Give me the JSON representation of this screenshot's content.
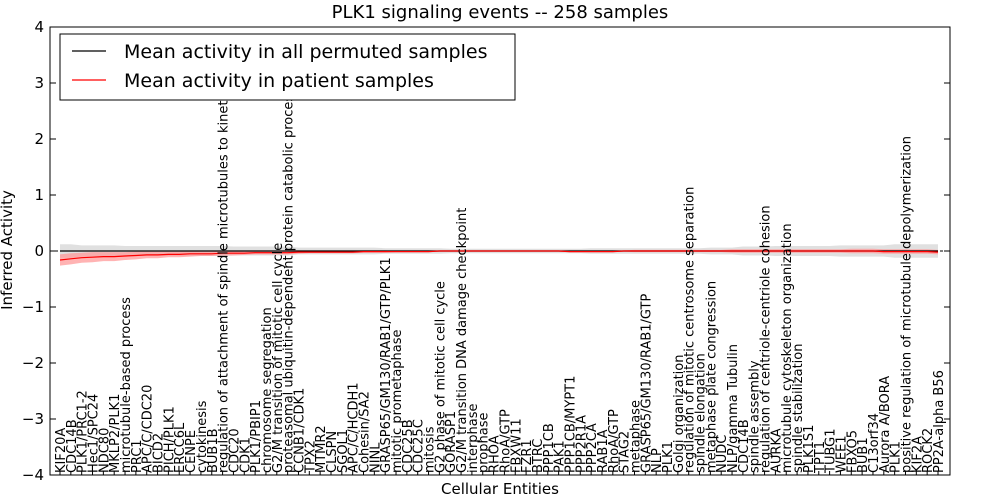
{
  "chart_data": {
    "type": "line",
    "title": "PLK1 signaling events -- 258 samples",
    "xlabel": "Cellular Entities",
    "ylabel": "Inferred Activity",
    "ylim": [
      -4,
      4
    ],
    "yticks": [
      -4,
      -3,
      -2,
      -1,
      0,
      1,
      2,
      3,
      4
    ],
    "grid": false,
    "legend_position": "top-left",
    "colors": {
      "permuted": "#000000",
      "patient": "#ff0000",
      "patient_band": "#ff9999",
      "permuted_band": "#cccccc"
    },
    "categories": [
      "KIF20A",
      "CDC14B",
      "PLK1/PRC1-2",
      "Hec1/SPC24",
      "NDC80",
      "MKLP2/PLK1",
      "microtubule-based process",
      "PRC1",
      "APC/C/CDC20",
      "BICD2",
      "PICH/PLK1",
      "ERCC6L",
      "CENPE",
      "cytokinesis",
      "BUB1B",
      "regulation of attachment of spindle microtubules to kinetochore",
      "CDC20",
      "CDK1",
      "PLK1/PBIP1",
      "chromosome segregation",
      "G2/M transition of mitotic cell cycle",
      "proteasomal ubiquitin-dependent protein catabolic process",
      "CCNB1/CDK1",
      "TPX2",
      "MTMR2",
      "CLSPN",
      "SGOL1",
      "APC/C/HCDH1",
      "Cohesin/SA2",
      "NINL",
      "GRASP65/GM130/RAB1/GTP/PLK1",
      "mitotic prometaphase",
      "CDC25B",
      "CDC25C",
      "mitosis",
      "G2 phase of mitotic cell cycle",
      "GORASP1",
      "G2/M transition DNA damage checkpoint",
      "interphase",
      "prophase",
      "RHOA",
      "RhoA/GTP",
      "FBXW11",
      "FZR1",
      "BTRC",
      "PPP1CB",
      "PAK1",
      "PPP1CB/MYPT1",
      "PPP2R1A",
      "PPP2CA",
      "RAB1A",
      "RhoA/GTP",
      "STAG2",
      "metaphase",
      "GRASP65/GM130/RAB1/GTP",
      "NLP",
      "PLK1",
      "Golgi organization",
      "regulation of mitotic centrosome separation",
      "spindle elongation",
      "metaphase plate congression",
      "NUDC",
      "NLP/gamma Tubulin",
      "CDC14B",
      "spindle assembly",
      "regulation of centriole-centriole cohesion",
      "AURKA",
      "microtubule cytoskeleton organization",
      "spindle stabilization",
      "PLK1S1",
      "TPT1",
      "TUBG1",
      "WEE1",
      "FBXO5",
      "BUB1",
      "C13orf34",
      "Aurora A/BORA",
      "PLK1",
      "positive regulation of microtubule depolymerization",
      "KIF2A",
      "ROCK2",
      "PP2A-alpha B56"
    ],
    "series": [
      {
        "name": "Mean activity in all permuted samples",
        "values": [
          0.0,
          0.0,
          0.0,
          0.0,
          0.0,
          0.0,
          0.0,
          0.0,
          0.0,
          0.0,
          0.0,
          0.0,
          0.0,
          0.0,
          0.0,
          0.0,
          0.0,
          0.0,
          0.0,
          0.0,
          0.0,
          0.0,
          0.0,
          0.0,
          0.0,
          0.0,
          0.0,
          0.0,
          0.0,
          0.0,
          0.0,
          0.0,
          0.0,
          0.0,
          0.0,
          0.0,
          0.0,
          0.0,
          0.0,
          0.0,
          0.0,
          0.0,
          0.0,
          0.0,
          0.0,
          0.0,
          0.0,
          0.0,
          0.0,
          0.0,
          0.0,
          0.0,
          0.0,
          0.0,
          0.0,
          0.0,
          0.0,
          0.0,
          0.0,
          0.0,
          0.0,
          0.0,
          0.0,
          0.0,
          0.0,
          0.0,
          0.0,
          0.0,
          0.0,
          0.0,
          0.0,
          0.0,
          0.0,
          0.0,
          0.0,
          0.0,
          0.0,
          0.0,
          0.0,
          0.0,
          0.0,
          0.0
        ],
        "band": [
          0.12,
          0.12,
          0.1,
          0.1,
          0.1,
          0.1,
          0.09,
          0.09,
          0.09,
          0.09,
          0.09,
          0.09,
          0.09,
          0.09,
          0.09,
          0.09,
          0.08,
          0.08,
          0.08,
          0.08,
          0.08,
          0.08,
          0.06,
          0.06,
          0.06,
          0.06,
          0.06,
          0.06,
          0.06,
          0.06,
          0.05,
          0.05,
          0.05,
          0.05,
          0.05,
          0.05,
          0.04,
          0.04,
          0.04,
          0.04,
          0.04,
          0.04,
          0.04,
          0.04,
          0.04,
          0.04,
          0.04,
          0.04,
          0.04,
          0.05,
          0.05,
          0.05,
          0.05,
          0.05,
          0.05,
          0.05,
          0.05,
          0.05,
          0.05,
          0.05,
          0.06,
          0.06,
          0.06,
          0.08,
          0.08,
          0.08,
          0.09,
          0.09,
          0.09,
          0.09,
          0.09,
          0.09,
          0.1,
          0.1,
          0.1,
          0.1,
          0.1,
          0.12,
          0.12,
          0.12,
          0.12,
          0.12
        ]
      },
      {
        "name": "Mean activity in patient samples",
        "values": [
          -0.16,
          -0.14,
          -0.12,
          -0.11,
          -0.1,
          -0.1,
          -0.09,
          -0.08,
          -0.07,
          -0.07,
          -0.06,
          -0.06,
          -0.05,
          -0.05,
          -0.05,
          -0.04,
          -0.04,
          -0.04,
          -0.03,
          -0.03,
          -0.03,
          -0.03,
          -0.02,
          -0.02,
          -0.02,
          -0.02,
          -0.02,
          -0.02,
          -0.01,
          -0.01,
          -0.01,
          -0.01,
          -0.01,
          -0.01,
          -0.01,
          0.0,
          0.0,
          0.0,
          0.0,
          0.0,
          0.0,
          0.0,
          0.0,
          0.0,
          0.0,
          0.0,
          0.0,
          -0.01,
          -0.01,
          -0.01,
          -0.01,
          -0.01,
          0.0,
          0.0,
          0.0,
          0.0,
          0.0,
          0.0,
          0.0,
          0.0,
          0.0,
          0.0,
          0.0,
          0.0,
          0.0,
          0.0,
          0.0,
          0.0,
          0.0,
          0.0,
          0.0,
          0.0,
          0.0,
          0.0,
          0.0,
          0.0,
          -0.01,
          -0.01,
          -0.01,
          -0.01,
          -0.01,
          -0.02
        ],
        "band": [
          0.1,
          0.1,
          0.09,
          0.09,
          0.08,
          0.08,
          0.07,
          0.07,
          0.06,
          0.06,
          0.05,
          0.05,
          0.05,
          0.04,
          0.04,
          0.04,
          0.04,
          0.03,
          0.03,
          0.03,
          0.03,
          0.03,
          0.03,
          0.02,
          0.02,
          0.02,
          0.02,
          0.02,
          0.02,
          0.02,
          0.02,
          0.01,
          0.01,
          0.01,
          0.01,
          0.01,
          0.01,
          0.01,
          0.01,
          0.01,
          0.01,
          0.01,
          0.01,
          0.01,
          0.01,
          0.01,
          0.01,
          0.01,
          0.01,
          0.01,
          0.01,
          0.01,
          0.01,
          0.02,
          0.02,
          0.02,
          0.02,
          0.02,
          0.02,
          0.02,
          0.02,
          0.02,
          0.03,
          0.03,
          0.03,
          0.03,
          0.03,
          0.03,
          0.03,
          0.03,
          0.03,
          0.03,
          0.03,
          0.04,
          0.04,
          0.04,
          0.04,
          0.04,
          0.04,
          0.04,
          0.04,
          0.04
        ]
      }
    ]
  }
}
